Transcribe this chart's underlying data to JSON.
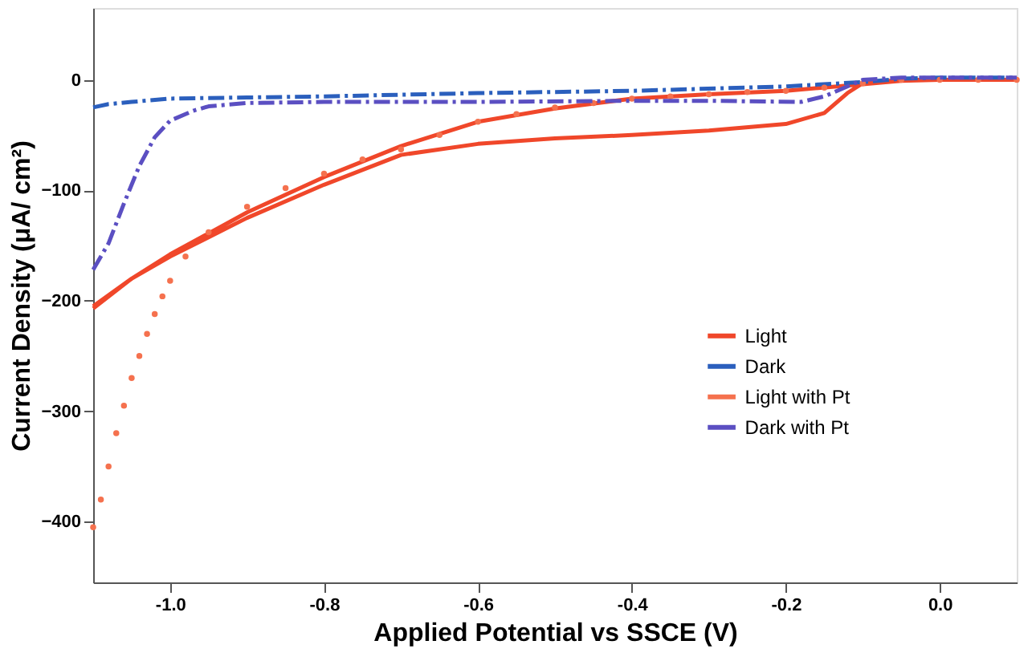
{
  "chart_data": {
    "type": "line",
    "xlabel": "Applied Potential vs SSCE (V)",
    "ylabel": "Current Density (μA/ cm²)",
    "xlim": [
      -1.1,
      0.1
    ],
    "xticks": [
      {
        "value": -1.0,
        "label": "-1.0"
      },
      {
        "value": -0.8,
        "label": "-0.8"
      },
      {
        "value": -0.6,
        "label": "-0.6"
      },
      {
        "value": -0.4,
        "label": "-0.4"
      },
      {
        "value": -0.2,
        "label": "-0.2"
      },
      {
        "value": 0.0,
        "label": "0.0"
      }
    ],
    "ylim": [
      -455,
      65
    ],
    "yticks": [
      -400,
      -300,
      -200,
      -100,
      0
    ],
    "grid": false,
    "legend": "right",
    "series": [
      {
        "name": "Light",
        "color": "#f0472a",
        "line_style": "solid",
        "marker": "none",
        "x": [
          -1.1,
          -1.05,
          -1.0,
          -0.9,
          -0.8,
          -0.7,
          -0.6,
          -0.5,
          -0.4,
          -0.3,
          -0.2,
          -0.15,
          -0.12,
          -0.1,
          -0.05,
          0.0,
          0.1,
          0.05,
          0.0,
          -0.05,
          -0.1,
          -0.2,
          -0.3,
          -0.4,
          -0.5,
          -0.6,
          -0.7,
          -0.8,
          -0.9,
          -1.0,
          -1.05,
          -1.1
        ],
        "values": [
          -207,
          -180,
          -160,
          -125,
          -95,
          -68,
          -58,
          -53,
          -50,
          -46,
          -40,
          -30,
          -12,
          -3,
          0,
          0,
          0,
          0,
          0,
          -1,
          -4,
          -10,
          -13,
          -17,
          -26,
          -38,
          -60,
          -88,
          -120,
          -158,
          -180,
          -205
        ]
      },
      {
        "name": "Dark",
        "color": "#2b5fbd",
        "line_style": "dashed",
        "marker": "none",
        "x": [
          -1.1,
          -1.08,
          -1.05,
          -1.0,
          -0.9,
          -0.8,
          -0.6,
          -0.4,
          -0.2,
          -0.1,
          -0.05,
          0.0,
          0.1
        ],
        "values": [
          -25,
          -22,
          -20,
          -17,
          -16,
          -15,
          -12,
          -10,
          -6,
          -2,
          1,
          2,
          2
        ]
      },
      {
        "name": "Light with Pt",
        "type": "scatter",
        "color": "#f5714e",
        "marker": "circle",
        "x": [
          -1.1,
          -1.09,
          -1.08,
          -1.07,
          -1.06,
          -1.05,
          -1.04,
          -1.03,
          -1.02,
          -1.01,
          -1.0,
          -0.98,
          -0.95,
          -0.9,
          -0.85,
          -0.8,
          -0.75,
          -0.7,
          -0.65,
          -0.6,
          -0.55,
          -0.5,
          -0.45,
          -0.4,
          -0.35,
          -0.3,
          -0.25,
          -0.2,
          -0.15,
          -0.1,
          -0.05,
          0.0,
          0.05,
          0.1
        ],
        "values": [
          -405,
          -380,
          -350,
          -320,
          -295,
          -270,
          -250,
          -230,
          -212,
          -196,
          -182,
          -160,
          -138,
          -115,
          -98,
          -85,
          -72,
          -63,
          -50,
          -38,
          -31,
          -25,
          -21,
          -17,
          -15,
          -13,
          -11,
          -10,
          -7,
          -3,
          0,
          0,
          0,
          0
        ]
      },
      {
        "name": "Dark with Pt",
        "color": "#5b4fc2",
        "line_style": "dashed",
        "marker": "none",
        "x": [
          -1.1,
          -1.08,
          -1.06,
          -1.04,
          -1.02,
          -1.0,
          -0.97,
          -0.95,
          -0.9,
          -0.8,
          -0.6,
          -0.4,
          -0.3,
          -0.18,
          -0.15,
          -0.12,
          -0.1,
          -0.05,
          0.0,
          0.1
        ],
        "values": [
          -172,
          -148,
          -112,
          -78,
          -52,
          -37,
          -28,
          -24,
          -21,
          -20,
          -20,
          -19,
          -19,
          -20,
          -15,
          -6,
          0,
          2,
          2,
          2
        ]
      }
    ]
  }
}
